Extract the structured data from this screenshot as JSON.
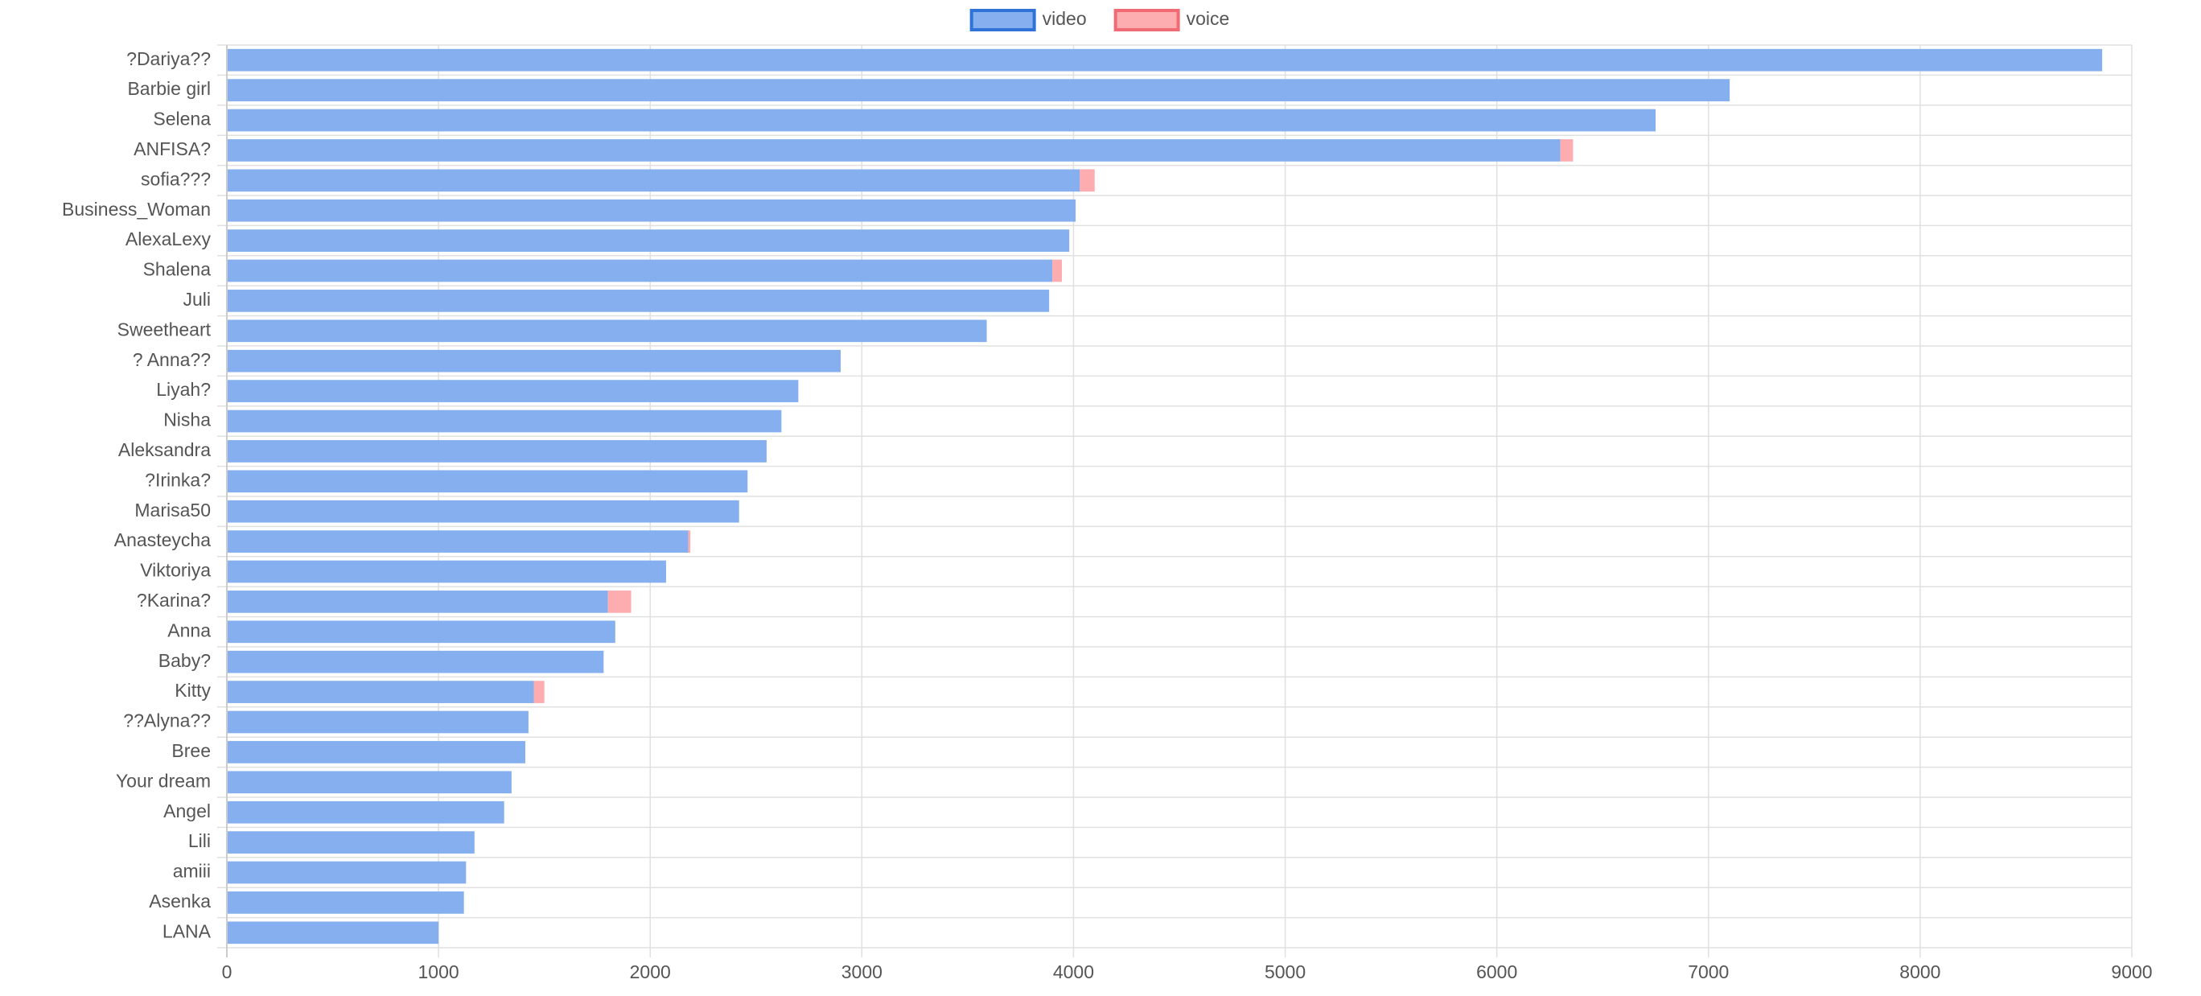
{
  "chart_data": {
    "type": "bar",
    "orientation": "horizontal",
    "stacked": true,
    "categories": [
      "?Dariya??",
      "Barbie girl",
      "Selena",
      "ANFISA?",
      "sofia???",
      "Business_Woman",
      "AlexaLexy",
      "Shalena",
      "Juli",
      "Sweetheart",
      "? Anna??",
      "Liyah?",
      "Nisha",
      "Aleksandra",
      "?Irinka?",
      "Marisa50",
      "Anasteycha",
      "Viktoriya",
      "?Karina?",
      "Anna",
      "Baby?",
      "Kitty",
      "??Alyna??",
      "Bree",
      "Your dream",
      "Angel",
      "Lili",
      "amiii",
      "Asenka",
      "LANA"
    ],
    "series": [
      {
        "name": "video",
        "color": "#85AFEE",
        "border_color": "#2F73D9",
        "values": [
          8860,
          7100,
          6750,
          6300,
          4030,
          4010,
          3980,
          3900,
          3885,
          3590,
          2900,
          2700,
          2620,
          2550,
          2460,
          2420,
          2180,
          2075,
          1800,
          1835,
          1780,
          1450,
          1425,
          1410,
          1345,
          1310,
          1170,
          1130,
          1120,
          1000
        ]
      },
      {
        "name": "voice",
        "color": "#FDACAF",
        "border_color": "#F06B73",
        "values": [
          0,
          0,
          0,
          60,
          70,
          0,
          0,
          45,
          0,
          0,
          0,
          0,
          0,
          0,
          0,
          0,
          10,
          0,
          110,
          0,
          0,
          50,
          0,
          0,
          0,
          0,
          0,
          0,
          0,
          0
        ]
      }
    ],
    "xlim": [
      0,
      9000
    ],
    "x_ticks": [
      0,
      1000,
      2000,
      3000,
      4000,
      5000,
      6000,
      7000,
      8000,
      9000
    ],
    "grid": true,
    "legend": "top-center"
  }
}
